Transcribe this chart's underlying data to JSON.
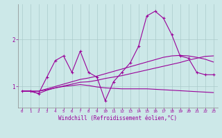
{
  "x": [
    0,
    1,
    2,
    3,
    4,
    5,
    6,
    7,
    8,
    9,
    10,
    11,
    12,
    13,
    14,
    15,
    16,
    17,
    18,
    19,
    20,
    21,
    22,
    23
  ],
  "line1": [
    0.9,
    0.9,
    0.85,
    1.2,
    1.55,
    1.65,
    1.3,
    1.75,
    1.3,
    1.2,
    0.7,
    1.1,
    1.3,
    1.5,
    1.85,
    2.5,
    2.6,
    2.45,
    2.1,
    1.65,
    1.6,
    1.3,
    1.25,
    1.25
  ],
  "line2": [
    0.9,
    0.9,
    0.85,
    0.92,
    0.97,
    1.01,
    1.05,
    1.09,
    1.1,
    1.13,
    1.17,
    1.2,
    1.23,
    1.27,
    1.31,
    1.35,
    1.39,
    1.43,
    1.47,
    1.51,
    1.56,
    1.6,
    1.64,
    1.65
  ],
  "line3": [
    0.9,
    0.9,
    0.9,
    0.95,
    1.0,
    1.05,
    1.1,
    1.15,
    1.18,
    1.22,
    1.27,
    1.32,
    1.37,
    1.42,
    1.47,
    1.52,
    1.57,
    1.62,
    1.65,
    1.66,
    1.65,
    1.62,
    1.58,
    1.52
  ],
  "line4": [
    0.9,
    0.9,
    0.9,
    0.93,
    0.97,
    1.0,
    1.02,
    1.04,
    1.02,
    0.99,
    0.97,
    0.96,
    0.95,
    0.95,
    0.95,
    0.95,
    0.94,
    0.93,
    0.92,
    0.91,
    0.9,
    0.89,
    0.88,
    0.87
  ],
  "line_color": "#990099",
  "bg_color": "#cce8e8",
  "grid_color": "#aacaca",
  "xlabel": "Windchill (Refroidissement éolien,°C)",
  "yticks": [
    1,
    2
  ],
  "xticks": [
    0,
    1,
    2,
    3,
    4,
    5,
    6,
    7,
    8,
    9,
    10,
    11,
    12,
    13,
    14,
    15,
    16,
    17,
    18,
    19,
    20,
    21,
    22,
    23
  ],
  "ylim": [
    0.55,
    2.75
  ],
  "xlim": [
    -0.5,
    23.5
  ]
}
